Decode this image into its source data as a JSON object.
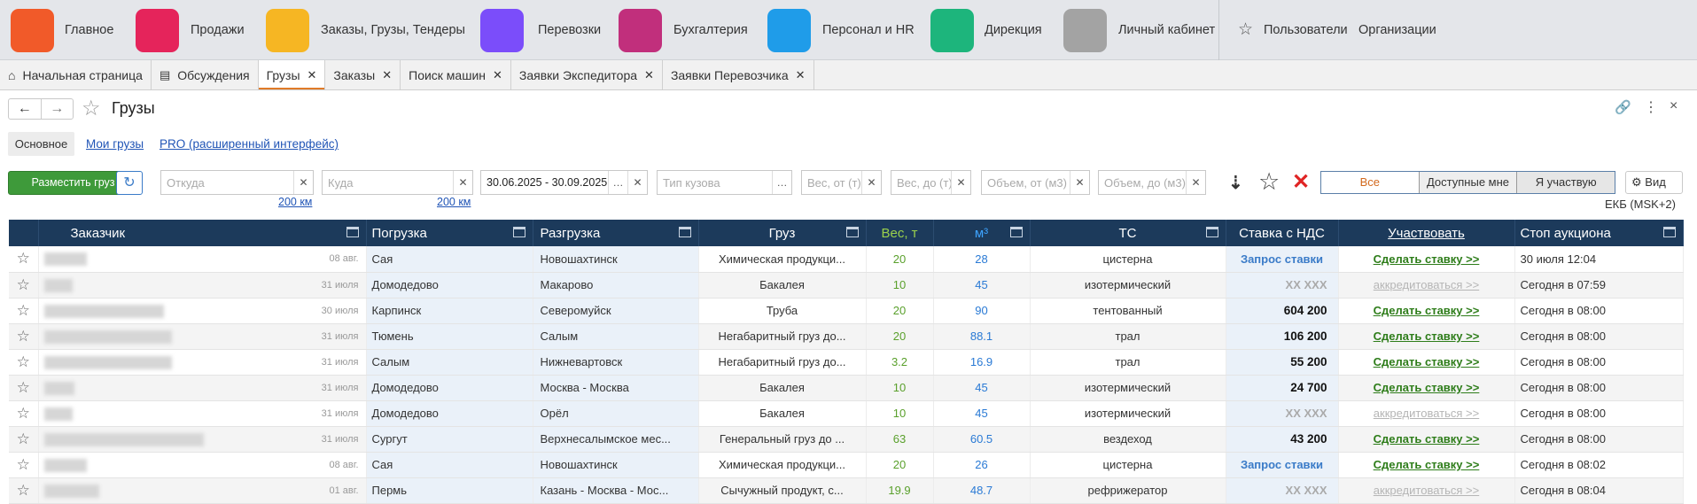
{
  "nav": {
    "items": [
      "Главное",
      "Продажи",
      "Заказы,  Грузы, Тендеры",
      "Перевозки",
      "Бухгалтерия",
      "Персонал и HR",
      "Дирекция",
      "Личный кабинет"
    ],
    "right": [
      "Пользователи",
      "Организации"
    ]
  },
  "tabs": [
    "Начальная страница",
    "Обсуждения",
    "Грузы",
    "Заказы",
    "Поиск машин",
    "Заявки Экспедитора",
    "Заявки Перевозчика"
  ],
  "header": {
    "title": "Грузы"
  },
  "subtabs": [
    "Основное",
    "Мои грузы",
    "PRO (расширенный интерфейс)"
  ],
  "filters": {
    "create_button": "Разместить груз",
    "from": "Откуда",
    "to": "Куда",
    "radius_from": "200 км",
    "radius_to": "200 км",
    "dates": "30.06.2025 - 30.09.2025",
    "body_type": "Тип кузова",
    "weight_from": "Вес, от (т)",
    "weight_to": "Вес, до (т)",
    "volume_from": "Объем, от (м3)",
    "volume_to": "Объем, до (м3)",
    "segments": [
      "Все",
      "Доступные мне",
      "Я участвую"
    ],
    "view": "Вид",
    "timezone": "ЕКБ (MSK+2)"
  },
  "table": {
    "columns": [
      "Заказчик",
      "Погрузка",
      "Разгрузка",
      "Груз",
      "Вес, т",
      "м³",
      "ТС",
      "Ставка с НДС",
      "Участвовать",
      "Стоп аукциона"
    ],
    "rows": [
      [
        "08 авг.",
        "Сая",
        "Новошахтинск",
        "Химическая продукци...",
        20,
        28,
        "цистерна",
        "Запрос ставки",
        "Сделать ставку >>",
        "30 июля 12:04"
      ],
      [
        "31 июля",
        "Домодедово",
        "Макарово",
        "Бакалея",
        10,
        45,
        "изотермический",
        "XX XXX",
        "аккредитоваться >>",
        "Сегодня в 07:59"
      ],
      [
        "30 июля",
        "Карпинск",
        "Северомуйск",
        "Труба",
        20,
        90,
        "тентованный",
        "604 200",
        "Сделать ставку >>",
        "Сегодня в 08:00"
      ],
      [
        "31 июля",
        "Тюмень",
        "Салым",
        "Негабаритный груз до...",
        20,
        88.1,
        "трал",
        "106 200",
        "Сделать ставку >>",
        "Сегодня в 08:00"
      ],
      [
        "31 июля",
        "Салым",
        "Нижневартовск",
        "Негабаритный груз до...",
        3.2,
        16.9,
        "трал",
        "55 200",
        "Сделать ставку >>",
        "Сегодня в 08:00"
      ],
      [
        "31 июля",
        "Домодедово",
        "Москва - Москва",
        "Бакалея",
        10,
        45,
        "изотермический",
        "24 700",
        "Сделать ставку >>",
        "Сегодня в 08:00"
      ],
      [
        "31 июля",
        "Домодедово",
        "Орёл",
        "Бакалея",
        10,
        45,
        "изотермический",
        "XX XXX",
        "аккредитоваться >>",
        "Сегодня в 08:00"
      ],
      [
        "31 июля",
        "Сургут",
        "Верхнесалымское мес...",
        "Генеральный груз до ...",
        63,
        60.5,
        "вездеход",
        "43 200",
        "Сделать ставку >>",
        "Сегодня в 08:00"
      ],
      [
        "08 авг.",
        "Сая",
        "Новошахтинск",
        "Химическая продукци...",
        20,
        26,
        "цистерна",
        "Запрос ставки",
        "Сделать ставку >>",
        "Сегодня в 08:02"
      ],
      [
        "01 авг.",
        "Пермь",
        "Казань - Москва - Мос...",
        "Сычужный продукт, с...",
        19.9,
        48.7,
        "рефрижератор",
        "XX XXX",
        "аккредитоваться >>",
        "Сегодня в 08:04"
      ]
    ]
  }
}
